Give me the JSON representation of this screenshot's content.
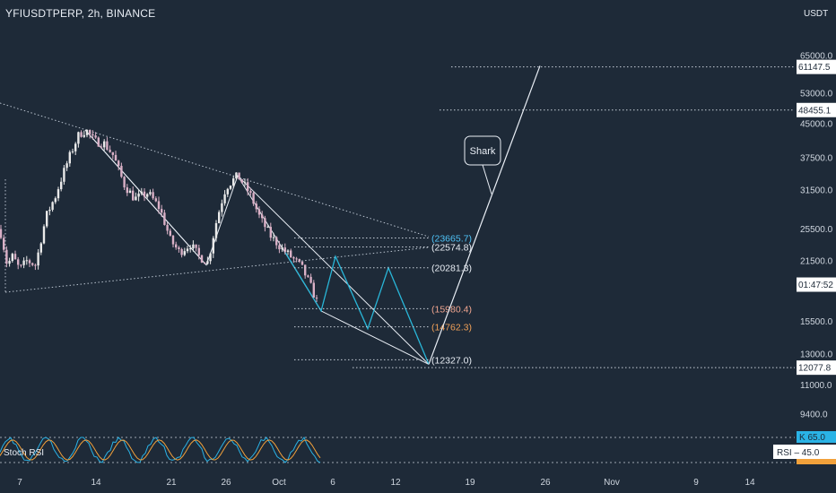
{
  "header": {
    "symbol": "YFIUSDTPERP, 2h, BINANCE",
    "currency": "USDT"
  },
  "chart_data": {
    "type": "candlestick",
    "y_scale": "log",
    "y_ticks": [
      "65000.0",
      "53000.0",
      "45000.0",
      "37500.0",
      "31500.0",
      "25500.0",
      "21500.0",
      "15500.0",
      "13000.0",
      "11000.0",
      "9400.0"
    ],
    "x_ticks": [
      "7",
      "14",
      "21",
      "26",
      "Oct",
      "6",
      "12",
      "19",
      "26",
      "Nov",
      "9",
      "14"
    ],
    "price_tags": [
      {
        "label": "61147.5",
        "value": 61147.5
      },
      {
        "label": "48455.1",
        "value": 48455.1
      },
      {
        "label": "01:47:52",
        "value": 18900
      },
      {
        "label": "12077.8",
        "value": 12077.8
      }
    ],
    "levels": [
      {
        "label": "(23665.7)",
        "value": 24300,
        "color": "#4fc3f7"
      },
      {
        "label": "(22574.8)",
        "value": 23150,
        "color": "#e9eef5"
      },
      {
        "label": "(20281.3)",
        "value": 20700,
        "color": "#e9eef5"
      },
      {
        "label": "(15980.4)",
        "value": 16600,
        "color": "#f0a58f"
      },
      {
        "label": "(14762.3)",
        "value": 15050,
        "color": "#f0a058"
      },
      {
        "label": "(12327.0)",
        "value": 12600,
        "color": "#e9eef5"
      }
    ],
    "annotation": "Shark",
    "indicator": {
      "name": "Stoch RSI",
      "k_label": "K",
      "k_value": "65.0",
      "rsi_label": "RSI",
      "rsi_value": "45.0"
    },
    "colors": {
      "up": "#e9e9e9",
      "down": "#d9b0c6",
      "background": "#1e2a38",
      "harmonic": "#29b6d8",
      "projection": "#e9eef5"
    }
  }
}
